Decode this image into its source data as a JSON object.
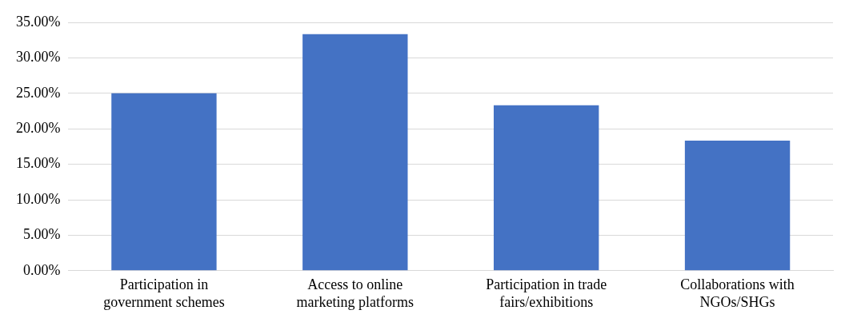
{
  "chart_data": {
    "type": "bar",
    "categories": [
      "Participation in government schemes",
      "Access to online marketing platforms",
      "Participation in trade fairs/exhibitions",
      "Collaborations with NGOs/SHGs"
    ],
    "values": [
      25.0,
      33.33,
      23.33,
      18.33
    ],
    "color": "#4472c4",
    "ylim": [
      0,
      35
    ],
    "yticks": [
      {
        "value": 0,
        "label": "0.00%"
      },
      {
        "value": 5,
        "label": "5.00%"
      },
      {
        "value": 10,
        "label": "10.00%"
      },
      {
        "value": 15,
        "label": "15.00%"
      },
      {
        "value": 20,
        "label": "20.00%"
      },
      {
        "value": 25,
        "label": "25.00%"
      },
      {
        "value": 30,
        "label": "30.00%"
      },
      {
        "value": 35,
        "label": "35.00%"
      }
    ],
    "grid": "y"
  }
}
